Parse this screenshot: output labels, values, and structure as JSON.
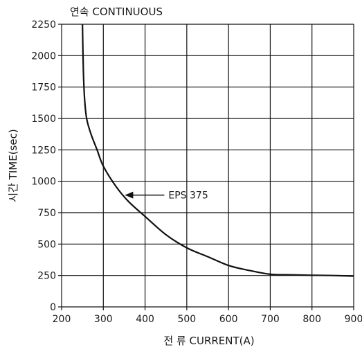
{
  "chart_data": {
    "type": "line",
    "title": "연속 CONTINUOUS",
    "xlabel": "전 류 CURRENT(A)",
    "ylabel": "시간 TIME(sec)",
    "xlim": [
      200,
      900
    ],
    "ylim": [
      0,
      2250
    ],
    "xticks": [
      200,
      300,
      400,
      500,
      600,
      700,
      800,
      900
    ],
    "yticks": [
      0,
      250,
      500,
      750,
      1000,
      1250,
      1500,
      1750,
      2000,
      2250
    ],
    "grid": true,
    "series": [
      {
        "name": "EPS 375",
        "x": [
          250,
          252,
          255,
          260,
          270,
          285,
          300,
          330,
          360,
          400,
          450,
          500,
          550,
          600,
          650,
          700,
          750,
          800,
          850,
          900
        ],
        "y": [
          2250,
          1900,
          1660,
          1500,
          1380,
          1250,
          1120,
          960,
          840,
          720,
          575,
          470,
          400,
          330,
          290,
          260,
          255,
          252,
          250,
          245
        ]
      }
    ],
    "annotations": [
      {
        "text": "EPS 375",
        "x": 340,
        "y": 890
      }
    ]
  }
}
